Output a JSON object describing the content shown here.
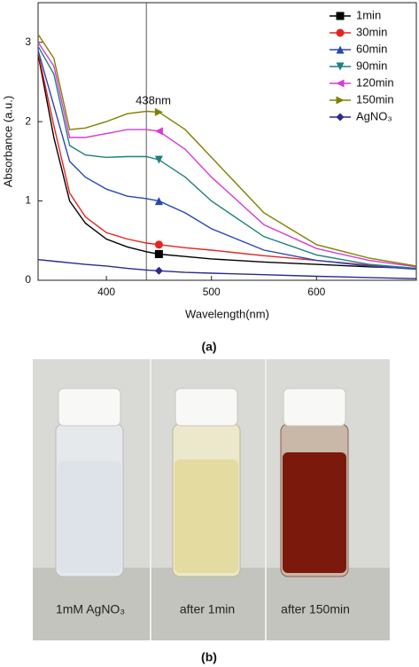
{
  "chart_data": {
    "type": "line",
    "y_label": "Absorbance (a.u.)",
    "x_label": "Wavelength(nm)",
    "x": [
      335,
      350,
      365,
      380,
      400,
      420,
      438,
      450,
      475,
      500,
      550,
      600,
      650,
      695
    ],
    "xlim": [
      335,
      695
    ],
    "xticks": [
      400,
      500,
      600
    ],
    "ylim": [
      0,
      3.5
    ],
    "yticks": [
      0,
      1,
      2,
      3
    ],
    "legend": "upper right",
    "marker_x": 450,
    "annotation": {
      "text": "438nm",
      "x": 438
    },
    "series": [
      {
        "name": "1min",
        "color": "#000000",
        "marker": "square",
        "values": [
          2.85,
          1.8,
          1.0,
          0.72,
          0.52,
          0.42,
          0.36,
          0.33,
          0.3,
          0.27,
          0.23,
          0.2,
          0.17,
          0.15
        ]
      },
      {
        "name": "30min",
        "color": "#e8221f",
        "marker": "circle",
        "values": [
          2.87,
          1.95,
          1.1,
          0.8,
          0.6,
          0.52,
          0.47,
          0.45,
          0.41,
          0.38,
          0.31,
          0.25,
          0.19,
          0.15
        ]
      },
      {
        "name": "60min",
        "color": "#2846b4",
        "marker": "triangle-up",
        "values": [
          2.9,
          2.2,
          1.5,
          1.3,
          1.15,
          1.06,
          1.03,
          1.0,
          0.85,
          0.65,
          0.38,
          0.25,
          0.18,
          0.14
        ]
      },
      {
        "name": "90min",
        "color": "#1f7f7f",
        "marker": "triangle-down",
        "values": [
          2.95,
          2.6,
          1.7,
          1.58,
          1.55,
          1.56,
          1.56,
          1.52,
          1.3,
          1.0,
          0.55,
          0.32,
          0.2,
          0.15
        ]
      },
      {
        "name": "120min",
        "color": "#d63ad6",
        "marker": "triangle-left",
        "values": [
          3.0,
          2.7,
          1.8,
          1.8,
          1.85,
          1.9,
          1.9,
          1.88,
          1.65,
          1.3,
          0.7,
          0.4,
          0.25,
          0.17
        ]
      },
      {
        "name": "150min",
        "color": "#808000",
        "marker": "triangle-right",
        "values": [
          3.1,
          2.8,
          1.9,
          1.92,
          2.0,
          2.1,
          2.13,
          2.12,
          1.9,
          1.55,
          0.85,
          0.45,
          0.28,
          0.18
        ]
      },
      {
        "name": "AgNO₃",
        "color": "#2a2a8c",
        "marker": "diamond",
        "values": [
          0.26,
          0.24,
          0.22,
          0.2,
          0.18,
          0.15,
          0.13,
          0.12,
          0.1,
          0.09,
          0.07,
          0.05,
          0.035,
          0.02
        ]
      }
    ]
  },
  "photo": {
    "labels": [
      "1mM AgNO₃",
      "after 1min",
      "after 150min"
    ]
  },
  "captions": [
    "(a)",
    "(b)"
  ]
}
